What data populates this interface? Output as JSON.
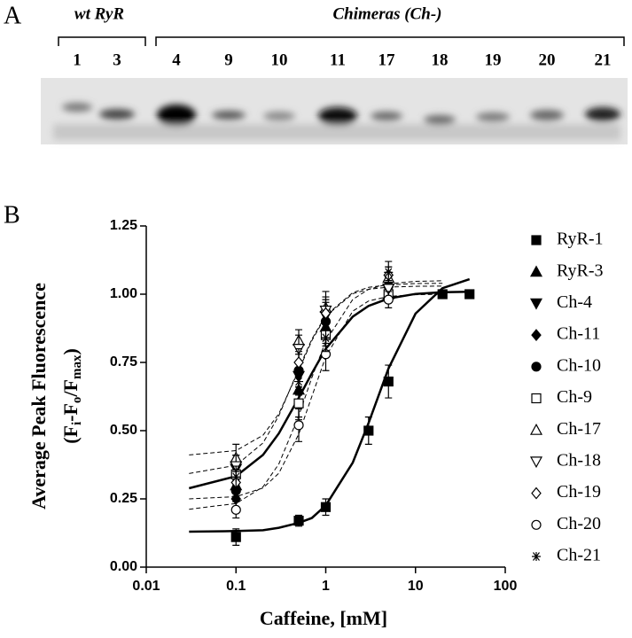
{
  "panel_a": {
    "label": "A",
    "group_1": "wt RyR",
    "group_2": "Chimeras (Ch-)",
    "lanes": [
      "1",
      "3",
      "4",
      "9",
      "10",
      "11",
      "17",
      "18",
      "19",
      "20",
      "21"
    ]
  },
  "chart_data": {
    "type": "scatter",
    "panel_label": "B",
    "x_label": "Caffeine, [mM]",
    "y_label": "Average Peak Fluorescence",
    "y_label_2": [
      "(F",
      "i",
      "-F",
      "o",
      "/F",
      "max",
      ")"
    ],
    "xscale": "log",
    "xlim": [
      0.01,
      100
    ],
    "xticks": [
      0.01,
      0.1,
      1,
      10,
      100
    ],
    "ylim": [
      0,
      1.25
    ],
    "yticks": [
      {
        "value": 0,
        "label": "0.00"
      },
      {
        "value": 0.25,
        "label": "0.25"
      },
      {
        "value": 0.5,
        "label": "0.50"
      },
      {
        "value": 0.75,
        "label": "0.75"
      },
      {
        "value": 1,
        "label": "1.00"
      },
      {
        "value": 1.25,
        "label": "1.25"
      }
    ],
    "series": [
      {
        "name": "RyR-1",
        "color": "#000000",
        "marker": "square",
        "filled": true,
        "x": [
          0.1,
          0.5,
          1,
          3,
          5,
          20,
          40
        ],
        "values": [
          0.11,
          0.17,
          0.22,
          0.5,
          0.68,
          1.0,
          1.0
        ],
        "errors": [
          0.03,
          0.02,
          0.03,
          0.05,
          0.06,
          0,
          0
        ]
      },
      {
        "name": "RyR-3",
        "color": "#000000",
        "marker": "triangle-up",
        "filled": true,
        "x": [
          0.1,
          0.5,
          1,
          5
        ],
        "values": [
          0.3,
          0.65,
          0.88,
          1.0
        ],
        "errors": [
          0.04,
          0.06,
          0.06,
          0.03
        ]
      },
      {
        "name": "Ch-4",
        "color": "#000000",
        "marker": "triangle-down",
        "filled": true,
        "x": [
          0.1,
          0.5,
          1,
          5
        ],
        "values": [
          0.36,
          0.7,
          0.92,
          1.02
        ],
        "errors": [
          0.05,
          0.05,
          0.05,
          0.03
        ]
      },
      {
        "name": "Ch-11",
        "color": "#000000",
        "marker": "diamond",
        "filled": true,
        "x": [
          0.1,
          0.5,
          1,
          5
        ],
        "values": [
          0.25,
          0.6,
          0.87,
          1.05
        ],
        "errors": [
          0.03,
          0.05,
          0.06,
          0.03
        ]
      },
      {
        "name": "Ch-10",
        "color": "#000000",
        "marker": "circle",
        "filled": true,
        "x": [
          0.1,
          0.5,
          1,
          5
        ],
        "values": [
          0.28,
          0.72,
          0.9,
          1.03
        ],
        "errors": [
          0.04,
          0.06,
          0.05,
          0.03
        ]
      },
      {
        "name": "Ch-9",
        "color": "#000000",
        "marker": "square",
        "filled": false,
        "x": [
          0.1,
          0.5,
          1,
          5
        ],
        "values": [
          0.34,
          0.6,
          0.85,
          1.0
        ],
        "errors": [
          0.04,
          0.06,
          0.06,
          0.03
        ]
      },
      {
        "name": "Ch-17",
        "color": "#000000",
        "marker": "triangle-up",
        "filled": false,
        "x": [
          0.1,
          0.5,
          1,
          5
        ],
        "values": [
          0.4,
          0.83,
          0.95,
          1.06
        ],
        "errors": [
          0.05,
          0.04,
          0.06,
          0.04
        ]
      },
      {
        "name": "Ch-18",
        "color": "#000000",
        "marker": "triangle-down",
        "filled": false,
        "x": [
          0.1,
          0.5,
          1,
          5
        ],
        "values": [
          0.37,
          0.8,
          0.94,
          1.02
        ],
        "errors": [
          0.04,
          0.05,
          0.05,
          0.03
        ]
      },
      {
        "name": "Ch-19",
        "color": "#000000",
        "marker": "diamond",
        "filled": false,
        "x": [
          0.1,
          0.5,
          1,
          5
        ],
        "values": [
          0.31,
          0.75,
          0.93,
          1.07
        ],
        "errors": [
          0.04,
          0.05,
          0.05,
          0.03
        ]
      },
      {
        "name": "Ch-20",
        "color": "#000000",
        "marker": "circle",
        "filled": false,
        "x": [
          0.1,
          0.5,
          1,
          5
        ],
        "values": [
          0.21,
          0.52,
          0.78,
          0.98
        ],
        "errors": [
          0.03,
          0.06,
          0.06,
          0.03
        ]
      },
      {
        "name": "Ch-21",
        "color": "#000000",
        "marker": "star",
        "filled": false,
        "x": [
          0.1,
          0.5,
          1,
          5
        ],
        "values": [
          0.33,
          0.68,
          0.84,
          1.08
        ],
        "errors": [
          0.04,
          0.05,
          0.05,
          0.04
        ]
      }
    ],
    "fits": [
      {
        "style": "solid",
        "x": [
          0.03,
          0.1,
          0.2,
          0.3,
          0.5,
          0.7,
          1,
          2,
          3,
          5,
          10,
          20,
          40
        ],
        "values": [
          0.13,
          0.132,
          0.135,
          0.144,
          0.162,
          0.18,
          0.226,
          0.383,
          0.528,
          0.728,
          0.929,
          1.022,
          1.055
        ]
      },
      {
        "style": "solid",
        "x": [
          0.03,
          0.1,
          0.2,
          0.3,
          0.5,
          0.7,
          1,
          2,
          3,
          5,
          10,
          20,
          40
        ],
        "values": [
          0.289,
          0.333,
          0.411,
          0.49,
          0.62,
          0.71,
          0.8,
          0.918,
          0.957,
          0.984,
          1.001,
          1.007,
          1.009
        ]
      },
      {
        "style": "dashed",
        "x": [
          0.03,
          0.1,
          0.2,
          0.3,
          0.5,
          0.7,
          1,
          2,
          3,
          5,
          10,
          20,
          40
        ],
        "values": [
          0.212,
          0.233,
          0.294,
          0.378,
          0.554,
          0.694,
          0.828,
          0.981,
          1.018,
          1.038,
          1.047,
          1.049,
          null
        ]
      },
      {
        "style": "dashed",
        "x": [
          0.03,
          0.1,
          0.2,
          0.3,
          0.5,
          0.7,
          1,
          2,
          3,
          5,
          10,
          20,
          40
        ],
        "values": [
          0.411,
          0.427,
          0.483,
          0.562,
          0.72,
          0.83,
          0.919,
          1.002,
          1.018,
          1.026,
          1.029,
          1.03,
          null
        ]
      },
      {
        "style": "dashed",
        "x": [
          0.03,
          0.1,
          0.2,
          0.3,
          0.5,
          0.7,
          1,
          2,
          3,
          5,
          10,
          20,
          40
        ],
        "values": [
          0.343,
          0.373,
          0.455,
          0.555,
          0.727,
          0.835,
          0.922,
          1.006,
          1.025,
          1.034,
          1.039,
          1.04,
          null
        ]
      },
      {
        "style": "dashed",
        "x": [
          0.03,
          0.1,
          0.2,
          0.3,
          0.5,
          0.7,
          1,
          2,
          3,
          5,
          10,
          20,
          40
        ],
        "values": [
          0.25,
          0.258,
          0.29,
          0.344,
          0.487,
          0.625,
          0.771,
          0.938,
          0.975,
          0.992,
          0.998,
          1.0,
          null
        ]
      }
    ]
  }
}
